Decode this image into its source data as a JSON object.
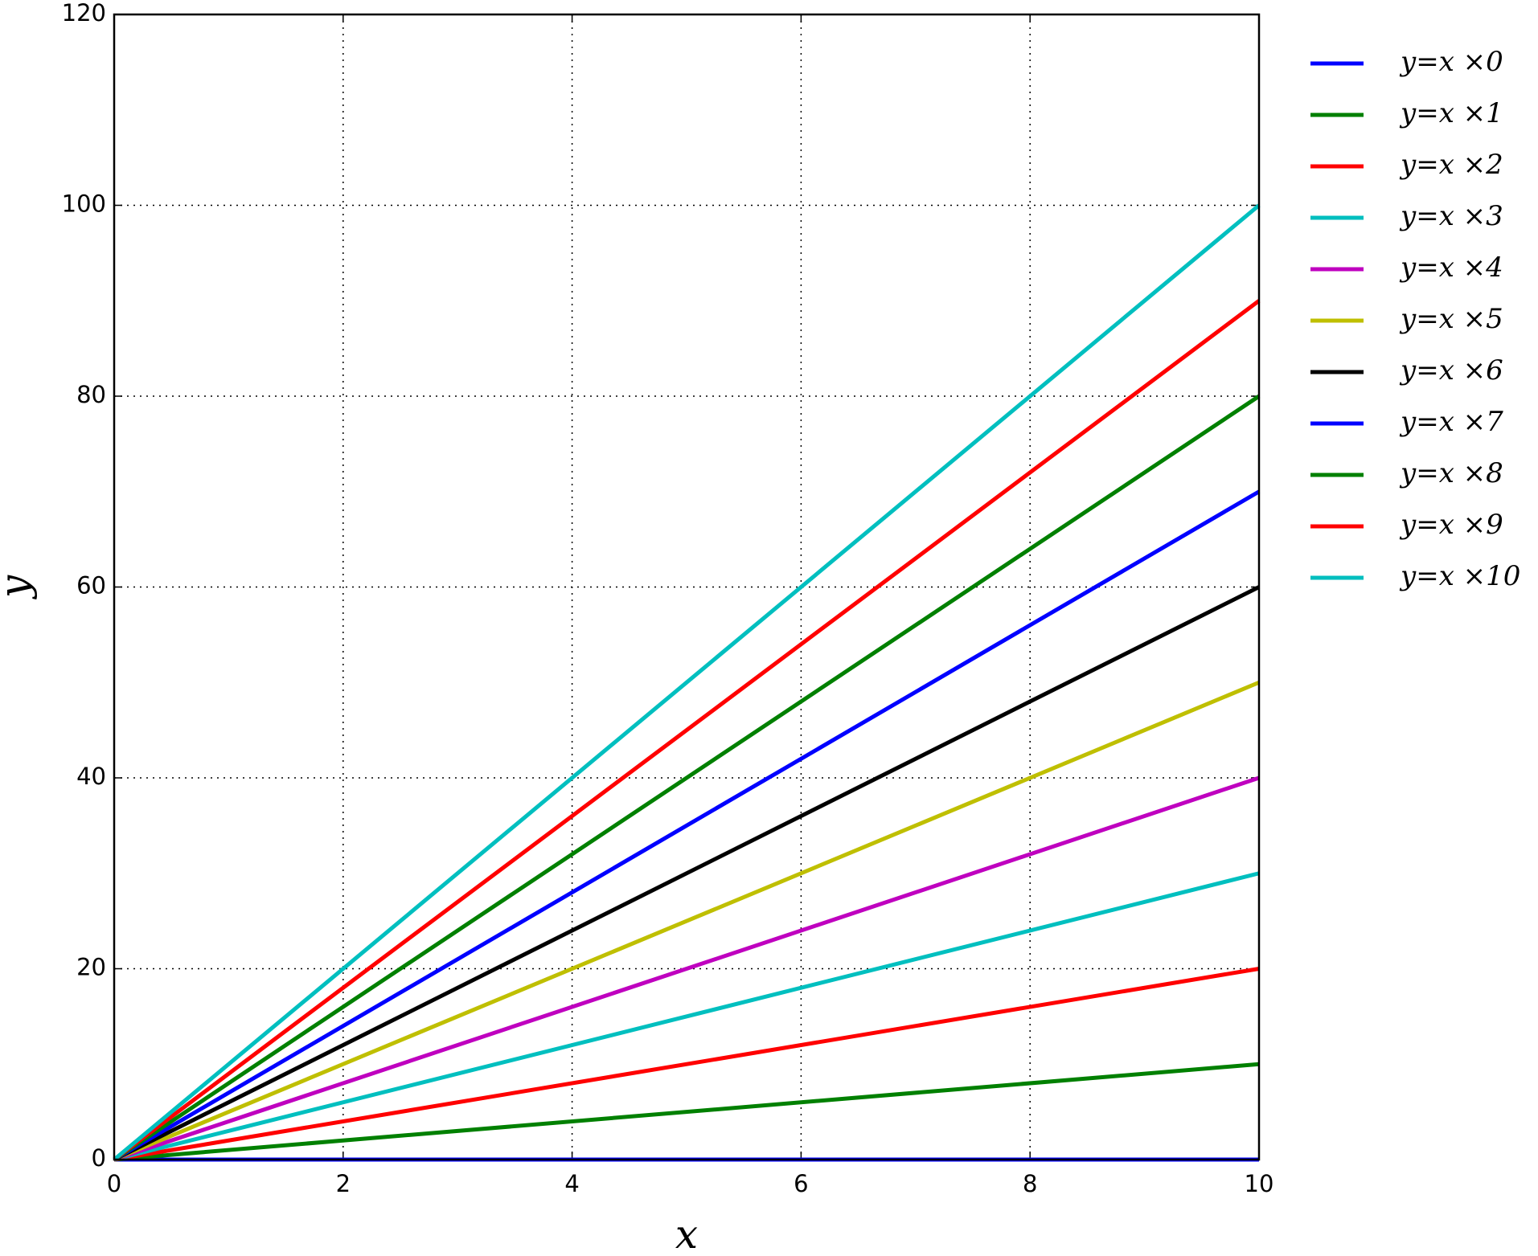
{
  "chart_data": {
    "type": "line",
    "x_label": "x",
    "y_label": "y",
    "x": [
      0,
      10
    ],
    "series": [
      {
        "name": "y=x ×0",
        "color": "#0000ff",
        "values": [
          0,
          0
        ]
      },
      {
        "name": "y=x ×1",
        "color": "#008000",
        "values": [
          0,
          10
        ]
      },
      {
        "name": "y=x ×2",
        "color": "#ff0000",
        "values": [
          0,
          20
        ]
      },
      {
        "name": "y=x ×3",
        "color": "#00bfbf",
        "values": [
          0,
          30
        ]
      },
      {
        "name": "y=x ×4",
        "color": "#bf00bf",
        "values": [
          0,
          40
        ]
      },
      {
        "name": "y=x ×5",
        "color": "#bfbf00",
        "values": [
          0,
          50
        ]
      },
      {
        "name": "y=x ×6",
        "color": "#000000",
        "values": [
          0,
          60
        ]
      },
      {
        "name": "y=x ×7",
        "color": "#0000ff",
        "values": [
          0,
          70
        ]
      },
      {
        "name": "y=x ×8",
        "color": "#008000",
        "values": [
          0,
          80
        ]
      },
      {
        "name": "y=x ×9",
        "color": "#ff0000",
        "values": [
          0,
          90
        ]
      },
      {
        "name": "y=x ×10",
        "color": "#00bfbf",
        "values": [
          0,
          100
        ]
      }
    ],
    "xlim": [
      0,
      10
    ],
    "xticks": [
      0,
      2,
      4,
      6,
      8,
      10
    ],
    "ylim": [
      0,
      120
    ],
    "yticks": [
      0,
      20,
      40,
      60,
      80,
      100,
      120
    ],
    "grid": true,
    "legend": "outside-right"
  }
}
